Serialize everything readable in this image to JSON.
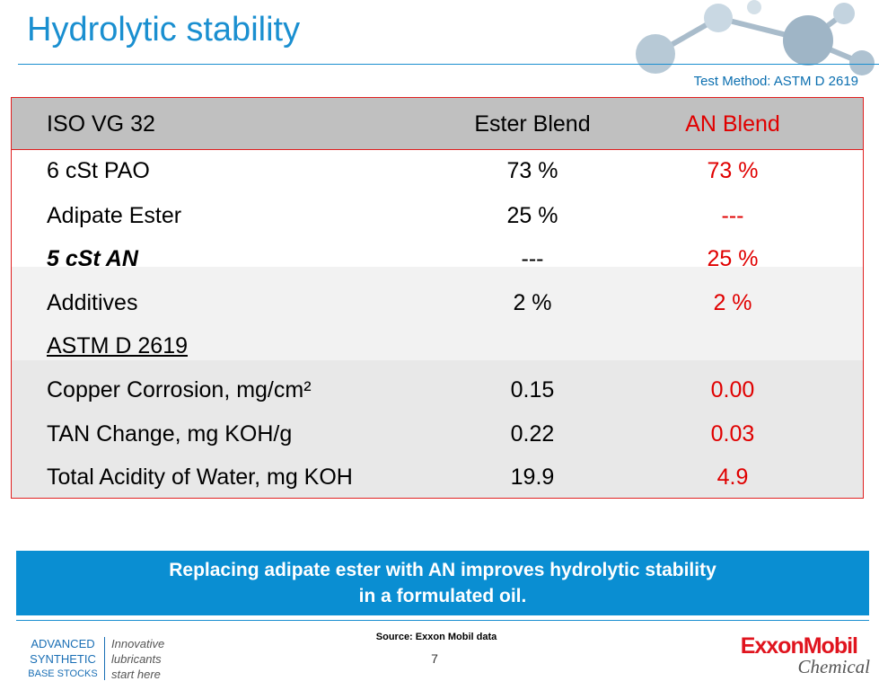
{
  "header": {
    "title": "Hydrolytic stability",
    "test_method": "Test Method: ASTM D 2619"
  },
  "table": {
    "columns": [
      "ISO VG 32",
      "Ester Blend",
      "AN Blend"
    ],
    "rows": [
      [
        "6 cSt PAO",
        "73 %",
        "73 %"
      ],
      [
        "Adipate Ester",
        "25 %",
        "---"
      ],
      [
        "5 cSt AN",
        "---",
        "25 %"
      ],
      [
        "Additives",
        "2 %",
        "2 %"
      ],
      [
        "ASTM D 2619"
      ],
      [
        "Copper Corrosion, mg/cm²",
        "0.15",
        "0.00"
      ],
      [
        "TAN Change, mg KOH/g",
        "0.22",
        "0.03"
      ],
      [
        "Total Acidity of Water, mg KOH",
        "19.9",
        "4.9"
      ]
    ]
  },
  "callout": {
    "lines": [
      "Replacing adipate ester with AN improves hydrolytic stability",
      "in a formulated oil."
    ]
  },
  "footer": {
    "brand_lines": [
      "ADVANCED",
      "SYNTHETIC",
      "BASE STOCKS"
    ],
    "tagline_lines": [
      "Innovative",
      "lubricants",
      "start here"
    ],
    "source": "Source: Exxon Mobil data",
    "page_number": "7",
    "logo": "ExxonMobil",
    "logo_sub": "Chemical"
  }
}
